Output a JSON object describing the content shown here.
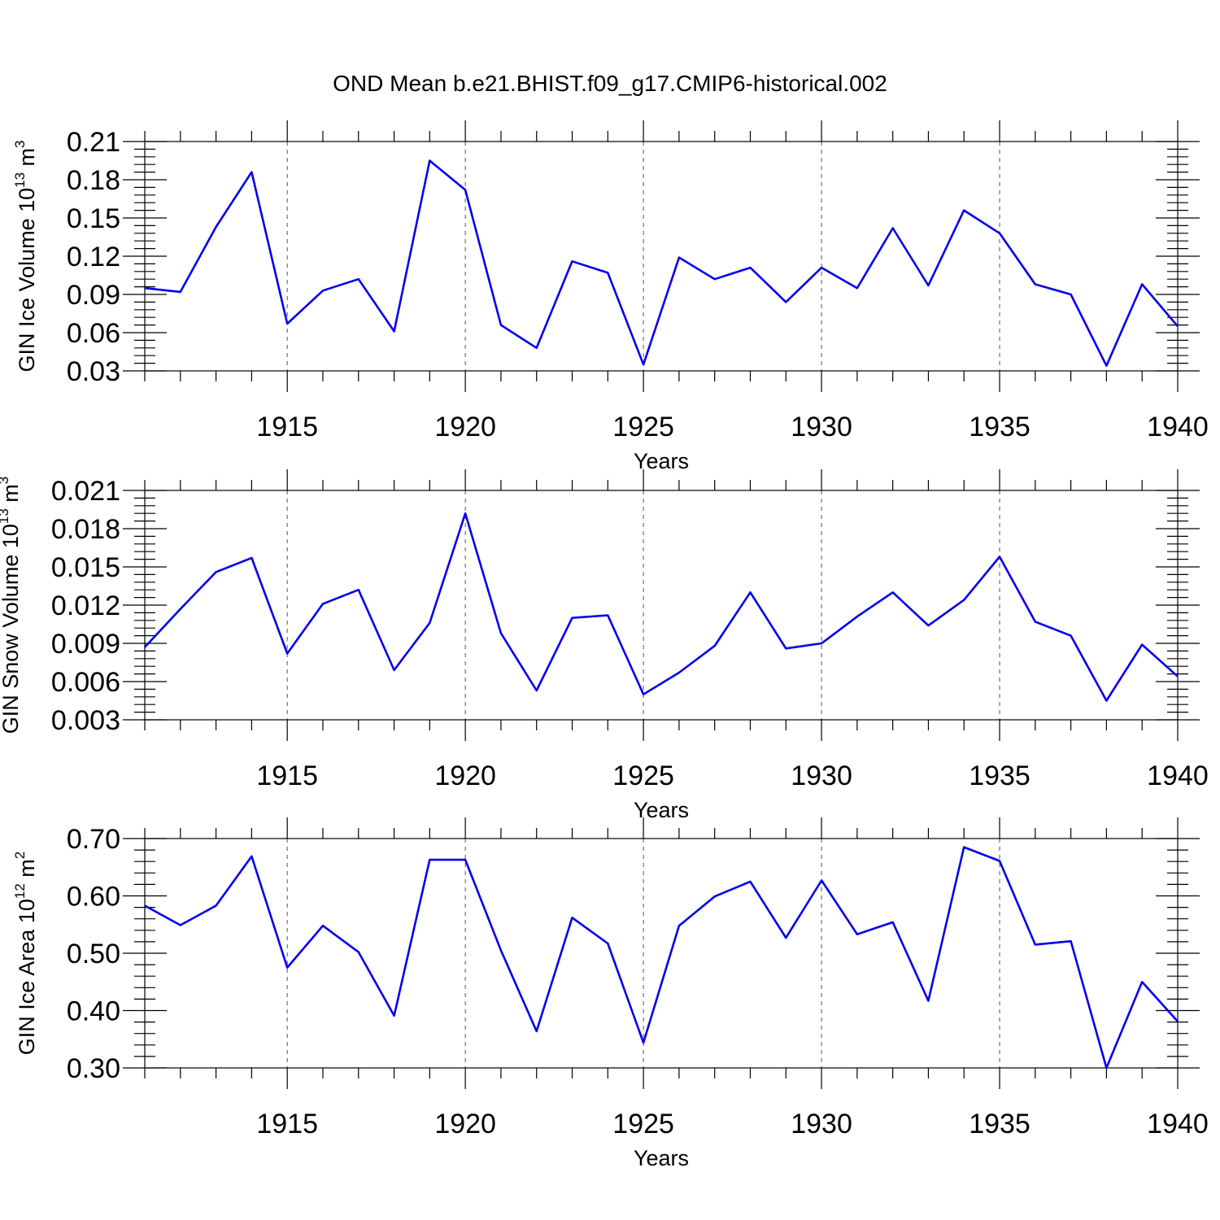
{
  "title": "OND Mean b.e21.BHIST.f09_g17.CMIP6-historical.002",
  "colors": {
    "series": "#0000ee",
    "axis": "#000000",
    "grid": "#555555"
  },
  "chart_data": [
    {
      "type": "line",
      "ylabel": {
        "text": "GIN Ice Volume 10",
        "sup": "13",
        "unit": " m",
        "unit_sup": "3"
      },
      "xlabel": "Years",
      "xlim": [
        1911,
        1940
      ],
      "xticks": [
        1915,
        1920,
        1925,
        1930,
        1935,
        1940
      ],
      "xtick_labels": [
        "1915",
        "1920",
        "1925",
        "1930",
        "1935",
        "1940"
      ],
      "ylim": [
        0.03,
        0.21
      ],
      "yticks": [
        0.03,
        0.06,
        0.09,
        0.12,
        0.15,
        0.18,
        0.21
      ],
      "ytick_labels": [
        "0.03",
        "0.06",
        "0.09",
        "0.12",
        "0.15",
        "0.18",
        "0.21"
      ],
      "grid": "vertical dashed at major x ticks",
      "x": [
        1911,
        1912,
        1913,
        1914,
        1915,
        1916,
        1917,
        1918,
        1919,
        1920,
        1921,
        1922,
        1923,
        1924,
        1925,
        1926,
        1927,
        1928,
        1929,
        1930,
        1931,
        1932,
        1933,
        1934,
        1935,
        1936,
        1937,
        1938,
        1939,
        1940
      ],
      "values": [
        0.095,
        0.092,
        0.143,
        0.186,
        0.067,
        0.093,
        0.102,
        0.061,
        0.195,
        0.172,
        0.066,
        0.048,
        0.116,
        0.107,
        0.035,
        0.119,
        0.102,
        0.111,
        0.084,
        0.111,
        0.095,
        0.142,
        0.097,
        0.156,
        0.138,
        0.098,
        0.09,
        0.034,
        0.098,
        0.065
      ]
    },
    {
      "type": "line",
      "ylabel": {
        "text": "GIN Snow Volume 10",
        "sup": "13",
        "unit": " m",
        "unit_sup": "3"
      },
      "xlabel": "Years",
      "xlim": [
        1911,
        1940
      ],
      "xticks": [
        1915,
        1920,
        1925,
        1930,
        1935,
        1940
      ],
      "xtick_labels": [
        "1915",
        "1920",
        "1925",
        "1930",
        "1935",
        "1940"
      ],
      "ylim": [
        0.003,
        0.021
      ],
      "yticks": [
        0.003,
        0.006,
        0.009,
        0.012,
        0.015,
        0.018,
        0.021
      ],
      "ytick_labels": [
        "0.003",
        "0.006",
        "0.009",
        "0.012",
        "0.015",
        "0.018",
        "0.021"
      ],
      "grid": "vertical dashed at major x ticks",
      "x": [
        1911,
        1912,
        1913,
        1914,
        1915,
        1916,
        1917,
        1918,
        1919,
        1920,
        1921,
        1922,
        1923,
        1924,
        1925,
        1926,
        1927,
        1928,
        1929,
        1930,
        1931,
        1932,
        1933,
        1934,
        1935,
        1936,
        1937,
        1938,
        1939,
        1940
      ],
      "values": [
        0.0087,
        0.0117,
        0.0146,
        0.0157,
        0.0082,
        0.0121,
        0.0132,
        0.0069,
        0.0106,
        0.0192,
        0.0098,
        0.0053,
        0.011,
        0.0112,
        0.005,
        0.0067,
        0.0088,
        0.013,
        0.0086,
        0.009,
        0.0111,
        0.013,
        0.0104,
        0.0124,
        0.0158,
        0.0107,
        0.0096,
        0.0045,
        0.0089,
        0.0064
      ]
    },
    {
      "type": "line",
      "ylabel": {
        "text": "GIN Ice Area 10",
        "sup": "12",
        "unit": " m",
        "unit_sup": "2"
      },
      "xlabel": "Years",
      "xlim": [
        1911,
        1940
      ],
      "xticks": [
        1915,
        1920,
        1925,
        1930,
        1935,
        1940
      ],
      "xtick_labels": [
        "1915",
        "1920",
        "1925",
        "1930",
        "1935",
        "1940"
      ],
      "ylim": [
        0.3,
        0.7
      ],
      "yticks": [
        0.3,
        0.4,
        0.5,
        0.6,
        0.7
      ],
      "ytick_labels": [
        "0.30",
        "0.40",
        "0.50",
        "0.60",
        "0.70"
      ],
      "grid": "vertical dashed at major x ticks",
      "x": [
        1911,
        1912,
        1913,
        1914,
        1915,
        1916,
        1917,
        1918,
        1919,
        1920,
        1921,
        1922,
        1923,
        1924,
        1925,
        1926,
        1927,
        1928,
        1929,
        1930,
        1931,
        1932,
        1933,
        1934,
        1935,
        1936,
        1937,
        1938,
        1939,
        1940
      ],
      "values": [
        0.583,
        0.549,
        0.583,
        0.669,
        0.475,
        0.548,
        0.502,
        0.391,
        0.663,
        0.663,
        0.505,
        0.364,
        0.562,
        0.517,
        0.344,
        0.548,
        0.599,
        0.625,
        0.527,
        0.627,
        0.533,
        0.554,
        0.417,
        0.685,
        0.661,
        0.515,
        0.521,
        0.3,
        0.45,
        0.381
      ]
    }
  ]
}
